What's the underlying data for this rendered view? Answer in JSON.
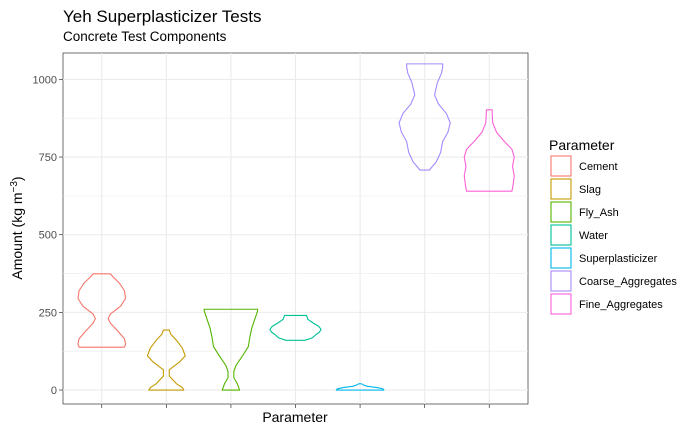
{
  "chart_data": {
    "type": "violin",
    "title": "Yeh Superplasticizer Tests",
    "subtitle": "Concrete Test Components",
    "xlabel": "Parameter",
    "ylabel": "Amount (kg m",
    "ylabel_superscript": "−3",
    "ylabel_suffix": ")",
    "ylim": [
      -45,
      1085
    ],
    "yticks": [
      0,
      250,
      500,
      750,
      1000
    ],
    "grid": true,
    "legend": {
      "title": "Parameter",
      "position": "right"
    },
    "series": [
      {
        "name": "Cement",
        "color": "#F8766D",
        "min": 138,
        "max": 374,
        "profile": [
          [
            138,
            0.78
          ],
          [
            148,
            0.82
          ],
          [
            165,
            0.78
          ],
          [
            190,
            0.55
          ],
          [
            215,
            0.3
          ],
          [
            230,
            0.22
          ],
          [
            245,
            0.3
          ],
          [
            270,
            0.65
          ],
          [
            295,
            0.82
          ],
          [
            320,
            0.78
          ],
          [
            345,
            0.6
          ],
          [
            365,
            0.38
          ],
          [
            374,
            0.3
          ]
        ]
      },
      {
        "name": "Slag",
        "color": "#C49A00",
        "min": 0,
        "max": 193,
        "profile": [
          [
            0,
            0.6
          ],
          [
            8,
            0.55
          ],
          [
            20,
            0.35
          ],
          [
            45,
            0.1
          ],
          [
            65,
            0.1
          ],
          [
            90,
            0.45
          ],
          [
            110,
            0.65
          ],
          [
            135,
            0.55
          ],
          [
            160,
            0.35
          ],
          [
            180,
            0.15
          ],
          [
            193,
            0.1
          ]
        ]
      },
      {
        "name": "Fly_Ash",
        "color": "#53B400",
        "min": 0,
        "max": 260,
        "profile": [
          [
            0,
            0.3
          ],
          [
            20,
            0.22
          ],
          [
            40,
            0.1
          ],
          [
            60,
            0.1
          ],
          [
            80,
            0.18
          ],
          [
            110,
            0.4
          ],
          [
            140,
            0.6
          ],
          [
            170,
            0.65
          ],
          [
            200,
            0.72
          ],
          [
            230,
            0.83
          ],
          [
            255,
            0.92
          ],
          [
            260,
            0.92
          ]
        ]
      },
      {
        "name": "Water",
        "color": "#00C094",
        "min": 160,
        "max": 240,
        "profile": [
          [
            160,
            0.32
          ],
          [
            168,
            0.58
          ],
          [
            178,
            0.7
          ],
          [
            186,
            0.82
          ],
          [
            195,
            0.88
          ],
          [
            205,
            0.8
          ],
          [
            215,
            0.62
          ],
          [
            228,
            0.42
          ],
          [
            240,
            0.38
          ]
        ]
      },
      {
        "name": "Superplasticizer",
        "color": "#00B6EB",
        "min": 0,
        "max": 20,
        "profile": [
          [
            0,
            0.82
          ],
          [
            4,
            0.78
          ],
          [
            8,
            0.58
          ],
          [
            12,
            0.26
          ],
          [
            16,
            0.12
          ],
          [
            20,
            0.05
          ]
        ]
      },
      {
        "name": "Coarse_Aggregates",
        "color": "#A58AFF",
        "min": 708,
        "max": 1050,
        "profile": [
          [
            708,
            0.16
          ],
          [
            735,
            0.4
          ],
          [
            765,
            0.55
          ],
          [
            800,
            0.62
          ],
          [
            830,
            0.8
          ],
          [
            860,
            0.88
          ],
          [
            890,
            0.75
          ],
          [
            920,
            0.48
          ],
          [
            950,
            0.34
          ],
          [
            990,
            0.44
          ],
          [
            1020,
            0.58
          ],
          [
            1040,
            0.62
          ],
          [
            1050,
            0.62
          ]
        ]
      },
      {
        "name": "Fine_Aggregates",
        "color": "#FB61D7",
        "min": 640,
        "max": 902,
        "profile": [
          [
            640,
            0.78
          ],
          [
            660,
            0.82
          ],
          [
            690,
            0.86
          ],
          [
            720,
            0.8
          ],
          [
            750,
            0.86
          ],
          [
            775,
            0.78
          ],
          [
            800,
            0.52
          ],
          [
            830,
            0.25
          ],
          [
            860,
            0.12
          ],
          [
            890,
            0.1
          ],
          [
            902,
            0.1
          ]
        ]
      }
    ]
  }
}
